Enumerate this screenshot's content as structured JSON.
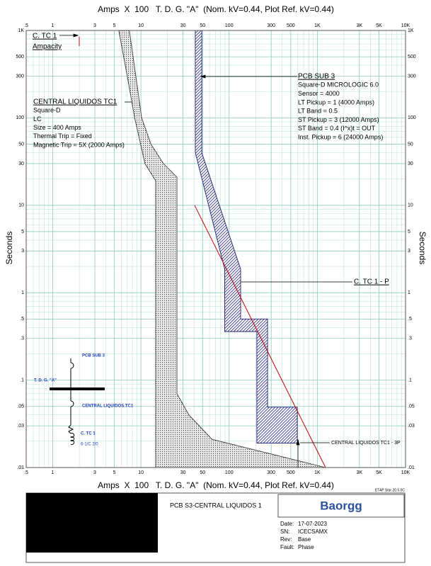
{
  "chart_data": {
    "type": "tcc",
    "x_label": "Amps  X  100   T. D. G. \"A\"  (Nom. kV=0.44, Plot Ref. kV=0.44)",
    "y_label": "Seconds",
    "xscale": "log",
    "yscale": "log",
    "grid": true,
    "xlim": [
      0.5,
      10000
    ],
    "ylim": [
      0.01,
      1000
    ],
    "xticks": [
      {
        "value": 0.5,
        "label": ".5"
      },
      1,
      3,
      5,
      10,
      30,
      50,
      100,
      300,
      500,
      {
        "value": 1000,
        "label": "1K"
      },
      {
        "value": 3000,
        "label": "3K"
      },
      {
        "value": 5000,
        "label": "5K"
      },
      {
        "value": 10000,
        "label": "10K"
      }
    ],
    "yticks": [
      {
        "value": 1000,
        "label": "1K"
      },
      500,
      300,
      100,
      50,
      30,
      10,
      5,
      3,
      1,
      {
        "value": 0.5,
        "label": ".5"
      },
      {
        "value": 0.3,
        "label": ".3"
      },
      {
        "value": 0.1,
        "label": ".1"
      },
      {
        "value": 0.05,
        "label": ".05"
      },
      {
        "value": 0.03,
        "label": ".03"
      },
      {
        "value": 0.01,
        "label": ".01"
      }
    ],
    "xminor": [
      0.6,
      0.7,
      0.8,
      0.9,
      2,
      4,
      6,
      7,
      8,
      9,
      20,
      40,
      60,
      70,
      80,
      90,
      200,
      400,
      600,
      700,
      800,
      900,
      2000,
      4000,
      6000,
      7000,
      8000,
      9000
    ],
    "yminor": [
      0.02,
      0.04,
      0.06,
      0.07,
      0.08,
      0.09,
      0.2,
      0.4,
      0.6,
      0.7,
      0.8,
      0.9,
      2,
      4,
      6,
      7,
      8,
      9,
      20,
      40,
      60,
      70,
      80,
      90,
      200,
      400,
      600,
      700,
      800,
      900
    ],
    "curves": [
      {
        "fill": "dots",
        "color": "#404040",
        "x": [
          5.6,
          7,
          8.5,
          11.1,
          14.7,
          14.7,
          1240,
          64,
          35,
          25.6,
          25.6,
          18,
          13,
          10.2,
          7.4
        ],
        "y": [
          1000,
          300,
          100,
          30,
          19,
          0.01,
          0.01,
          0.021,
          0.04,
          0.07,
          21,
          30,
          50,
          100,
          1000
        ]
      },
      {
        "fill": "hatch",
        "color": "#1f1f7a",
        "x": [
          41.4,
          41.4,
          89,
          89,
          206,
          206,
          593,
          593,
          273,
          273,
          135,
          135,
          49,
          49
        ],
        "y": [
          1000,
          40,
          1.86,
          0.36,
          0.36,
          0.019,
          0.019,
          0.049,
          0.049,
          0.5,
          0.5,
          1.86,
          40,
          1000
        ]
      },
      {
        "fill": "none",
        "color": "#c00000",
        "x": [
          40.6,
          1240
        ],
        "y": [
          10,
          0.01
        ]
      },
      {
        "fill": "none",
        "color": "#c00000",
        "x": [
          2,
          2
        ],
        "y": [
          850,
          660
        ]
      }
    ],
    "annotations": [
      {
        "title": "C. TC 1",
        "lines": [
          "Ampacity"
        ]
      },
      {
        "title": "CENTRAL LIQUIDOS TC1",
        "lines": [
          "Square-D",
          "LC",
          "Size = 400 Amps",
          "Thermal Trip = Fixed",
          "Magnetic Trip = 5X (2000 Amps)"
        ]
      },
      {
        "title": "PCB SUB 3",
        "lines": [
          "Square-D  MICROLOGIC 6.0",
          "Sensor = 4000",
          "LT Pickup = 1 (4000 Amps)",
          "LT Band = 0.5",
          "ST Pickup = 3 (12000 Amps)",
          "ST Band = 0.4  (I^x)t = OUT",
          "Inst. Pickup = 6 (24000 Amps)"
        ]
      },
      {
        "title": "C. TC 1 - P",
        "lines": []
      },
      {
        "title": "CENTRAL LIQUIDOS TC1 - 3P",
        "lines": []
      }
    ]
  },
  "one_line": {
    "labels": [
      "PCB SUB 3",
      "T. D. G. \"A\"",
      "CENTRAL LIQUIDOS TC1",
      "C. TC 1",
      "6-1/C 2/0"
    ]
  },
  "footer": {
    "etap": "ETAP Star 20.5.0C",
    "project": "PCB S3-CENTRAL LIQUIDOS 1",
    "logo": "Baorgg",
    "fields": [
      [
        "Date:",
        "17-07-2023"
      ],
      [
        "SN:",
        "ICECSAMX"
      ],
      [
        "Rev:",
        "Base"
      ],
      [
        "Fault:",
        "Phase"
      ]
    ]
  }
}
